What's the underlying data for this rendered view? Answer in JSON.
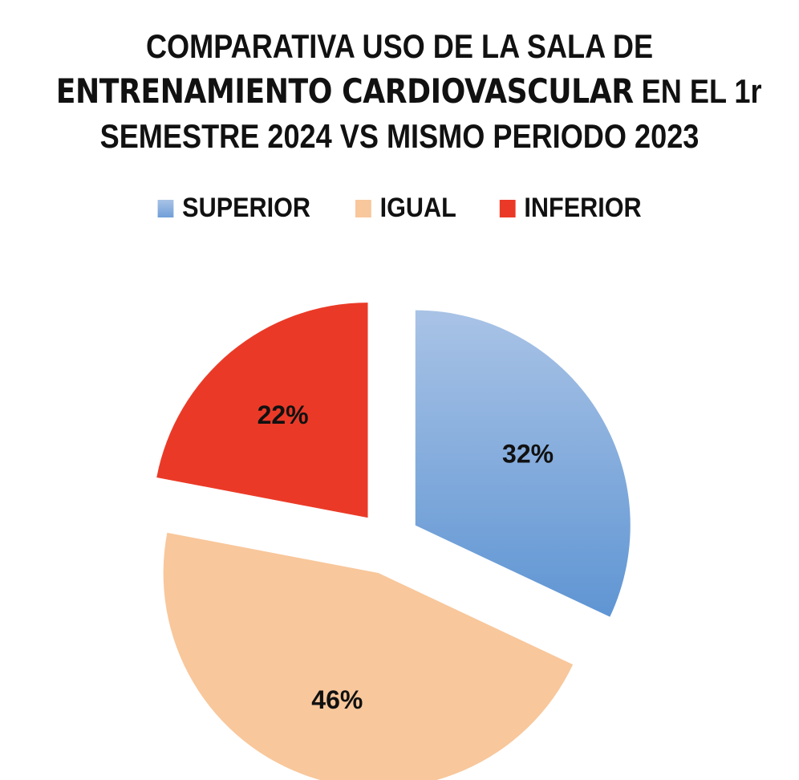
{
  "chart_data": {
    "type": "pie",
    "title": {
      "line1": "COMPARATIVA USO DE LA SALA DE",
      "line2_emphasis": "ENTRENAMIENTO CARDIOVASCULAR",
      "line2_rest": " EN EL 1r",
      "line3": "SEMESTRE 2024 VS MISMO PERIODO 2023"
    },
    "categories": [
      "SUPERIOR",
      "IGUAL",
      "INFERIOR"
    ],
    "values": [
      32,
      46,
      22
    ],
    "data_labels": [
      "32%",
      "46%",
      "22%"
    ],
    "colors": [
      "#6F9FD8",
      "#F8C79B",
      "#EA3A27"
    ],
    "legend_position": "top",
    "exploded": true
  }
}
